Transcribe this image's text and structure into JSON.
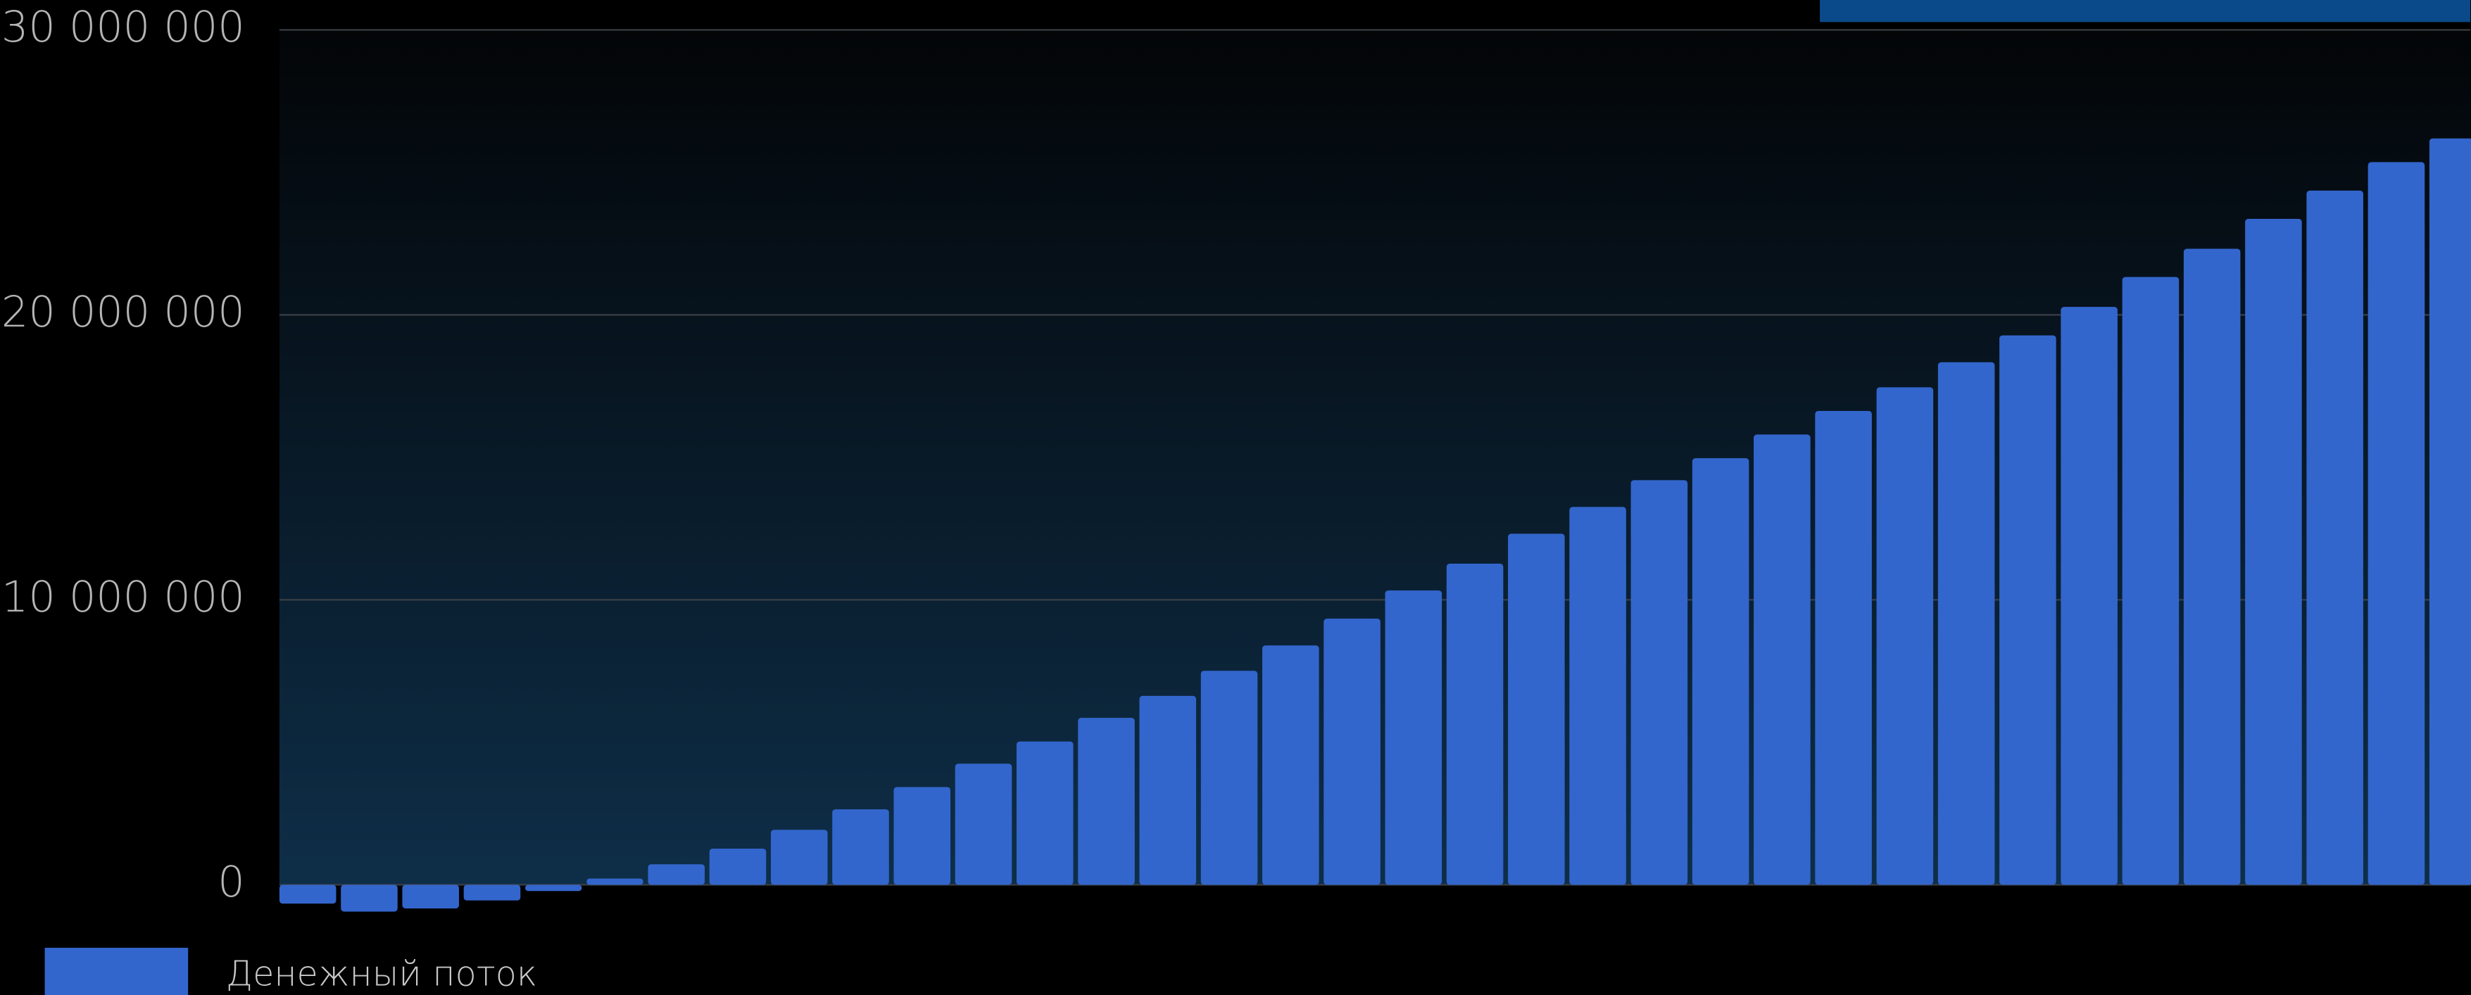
{
  "chart_data": {
    "type": "bar",
    "categories": [
      null,
      null,
      null,
      null,
      null,
      null,
      null,
      null,
      null,
      null,
      null,
      null,
      null,
      null,
      null,
      null,
      null,
      null,
      null,
      null,
      null,
      null,
      null,
      null,
      null,
      null,
      null,
      null,
      null,
      null,
      null,
      null,
      null,
      null,
      null,
      null
    ],
    "series": [
      {
        "name": "Денежный поток",
        "color": "#3366cc",
        "values": [
          -660000,
          -940000,
          -830000,
          -550000,
          -220000,
          220000,
          720000,
          1270000,
          1930000,
          2650000,
          3430000,
          4250000,
          5030000,
          5860000,
          6630000,
          7510000,
          8400000,
          9340000,
          10330000,
          11270000,
          12320000,
          13260000,
          14200000,
          14970000,
          15800000,
          16630000,
          17460000,
          18340000,
          19280000,
          20280000,
          21330000,
          22320000,
          23370000,
          24360000,
          25360000,
          26190000
        ]
      }
    ],
    "ylim": [
      -1000000,
      30000000
    ],
    "yticks": [
      {
        "value": 0,
        "label": "0"
      },
      {
        "value": 10000000,
        "label": "10 000 000"
      },
      {
        "value": 20000000,
        "label": "20 000 000"
      },
      {
        "value": 30000000,
        "label": "30 000 000"
      }
    ],
    "grid": true
  }
}
